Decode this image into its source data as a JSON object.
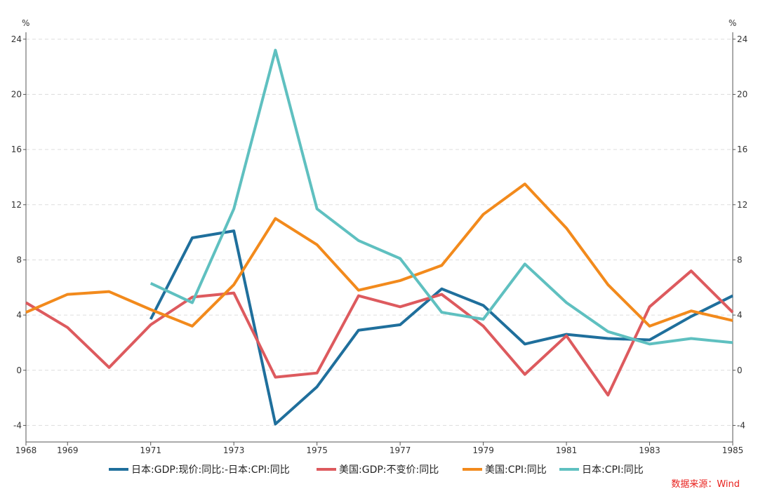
{
  "chart_data": {
    "type": "line",
    "y_unit_left": "%",
    "y_unit_right": "%",
    "ylim": [
      -5.2,
      24.5
    ],
    "yticks": [
      -4,
      0,
      4,
      8,
      12,
      16,
      20,
      24
    ],
    "xlim": [
      1968,
      1985
    ],
    "xticks": [
      1968,
      1969,
      1971,
      1973,
      1975,
      1977,
      1979,
      1981,
      1983,
      1985
    ],
    "grid": true,
    "legend_position": "bottom",
    "source": "数据来源：Wind",
    "series": [
      {
        "name": "日本:GDP:现价:同比:-日本:CPI:同比",
        "color": "#1f6f9c",
        "points": [
          [
            1971,
            3.7
          ],
          [
            1972,
            9.6
          ],
          [
            1973,
            10.1
          ],
          [
            1974,
            -3.9
          ],
          [
            1975,
            -1.2
          ],
          [
            1976,
            2.9
          ],
          [
            1977,
            3.3
          ],
          [
            1978,
            5.9
          ],
          [
            1979,
            4.7
          ],
          [
            1980,
            1.9
          ],
          [
            1981,
            2.6
          ],
          [
            1982,
            2.3
          ],
          [
            1983,
            2.2
          ],
          [
            1984,
            3.9
          ],
          [
            1985,
            5.4
          ]
        ]
      },
      {
        "name": "美国:GDP:不变价:同比",
        "color": "#dd5a5e",
        "points": [
          [
            1968,
            4.9
          ],
          [
            1969,
            3.1
          ],
          [
            1970,
            0.2
          ],
          [
            1971,
            3.3
          ],
          [
            1972,
            5.3
          ],
          [
            1973,
            5.6
          ],
          [
            1974,
            -0.5
          ],
          [
            1975,
            -0.2
          ],
          [
            1976,
            5.4
          ],
          [
            1977,
            4.6
          ],
          [
            1978,
            5.5
          ],
          [
            1979,
            3.2
          ],
          [
            1980,
            -0.3
          ],
          [
            1981,
            2.5
          ],
          [
            1982,
            -1.8
          ],
          [
            1983,
            4.6
          ],
          [
            1984,
            7.2
          ],
          [
            1985,
            4.2
          ]
        ]
      },
      {
        "name": "美国:CPI:同比",
        "color": "#f28a1c",
        "points": [
          [
            1968,
            4.2
          ],
          [
            1969,
            5.5
          ],
          [
            1970,
            5.7
          ],
          [
            1971,
            4.4
          ],
          [
            1972,
            3.2
          ],
          [
            1973,
            6.2
          ],
          [
            1974,
            11.0
          ],
          [
            1975,
            9.1
          ],
          [
            1976,
            5.8
          ],
          [
            1977,
            6.5
          ],
          [
            1978,
            7.6
          ],
          [
            1979,
            11.3
          ],
          [
            1980,
            13.5
          ],
          [
            1981,
            10.3
          ],
          [
            1982,
            6.2
          ],
          [
            1983,
            3.2
          ],
          [
            1984,
            4.3
          ],
          [
            1985,
            3.6
          ]
        ]
      },
      {
        "name": "日本:CPI:同比",
        "color": "#5fc0c0",
        "points": [
          [
            1971,
            6.3
          ],
          [
            1972,
            4.9
          ],
          [
            1973,
            11.7
          ],
          [
            1974,
            23.2
          ],
          [
            1975,
            11.7
          ],
          [
            1976,
            9.4
          ],
          [
            1977,
            8.1
          ],
          [
            1978,
            4.2
          ],
          [
            1979,
            3.7
          ],
          [
            1980,
            7.7
          ],
          [
            1981,
            4.9
          ],
          [
            1982,
            2.8
          ],
          [
            1983,
            1.9
          ],
          [
            1984,
            2.3
          ],
          [
            1985,
            2.0
          ]
        ]
      }
    ]
  }
}
